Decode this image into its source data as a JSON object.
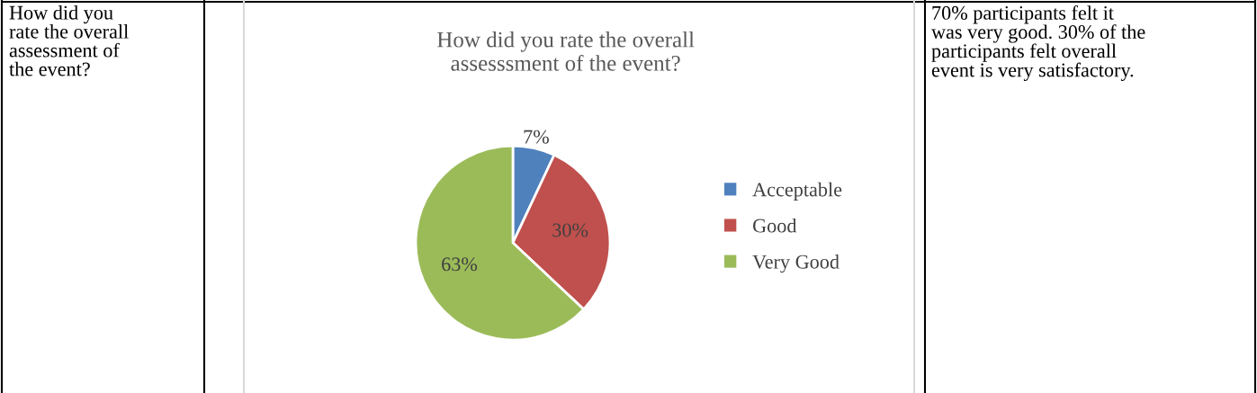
{
  "chart_data": {
    "type": "pie",
    "title": "How did you rate the overall\nassesssment of the event?",
    "categories": [
      "Acceptable",
      "Good",
      "Very Good"
    ],
    "values": [
      7,
      30,
      63
    ],
    "colors": [
      "#4f81bd",
      "#c0504d",
      "#9bbb59"
    ],
    "value_labels": [
      "7%",
      "30%",
      "63%"
    ],
    "legend": "right",
    "annotations": [
      "How did you\nrate the overall\nassessment of\nthe event?",
      "70% participants felt it\nwas very good. 30% of the\nparticipants felt overall\nevent is very satisfactory."
    ]
  }
}
